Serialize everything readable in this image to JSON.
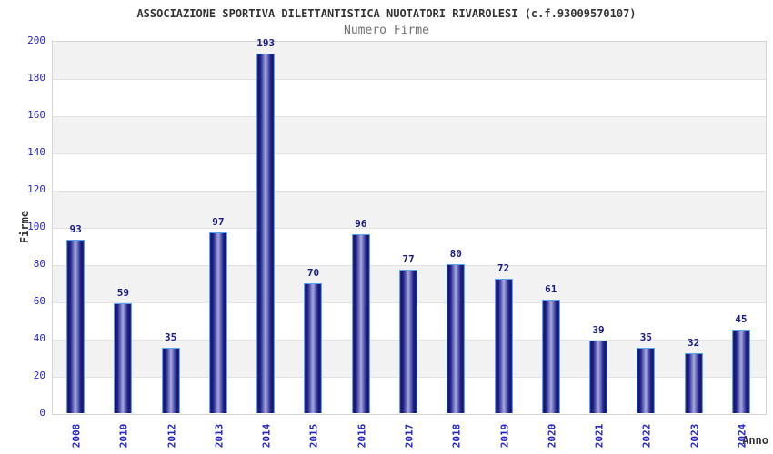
{
  "chart_data": {
    "type": "bar",
    "title": "ASSOCIAZIONE SPORTIVA DILETTANTISTICA NUOTATORI RIVAROLESI (c.f.93009570107)",
    "subtitle": "Numero Firme",
    "xlabel": "Anno",
    "ylabel": "Firme",
    "categories": [
      "2008",
      "2010",
      "2012",
      "2013",
      "2014",
      "2015",
      "2016",
      "2017",
      "2018",
      "2019",
      "2020",
      "2021",
      "2022",
      "2023",
      "2024"
    ],
    "values": [
      93,
      59,
      35,
      97,
      193,
      70,
      96,
      77,
      80,
      72,
      61,
      39,
      35,
      32,
      45
    ],
    "ylim": [
      0,
      200
    ],
    "ytick_step": 20,
    "grid": "alternating-horizontal-bands",
    "legend": "none",
    "colors": {
      "bar_gradient_edge": "#31319f",
      "bar_gradient_dark": "#15156d",
      "bar_gradient_mid": "#23238d",
      "bar_gradient_center": "#a6acde",
      "bar_border": "#58a4f0",
      "tick_label": "#2525cc",
      "value_label": "#1a1a85",
      "band_gray": "#f2f2f2",
      "band_white": "#ffffff",
      "gridline": "#e2e2e2",
      "plot_border": "#d4d4d4",
      "title_color": "#333333",
      "subtitle_color": "#737373"
    }
  }
}
